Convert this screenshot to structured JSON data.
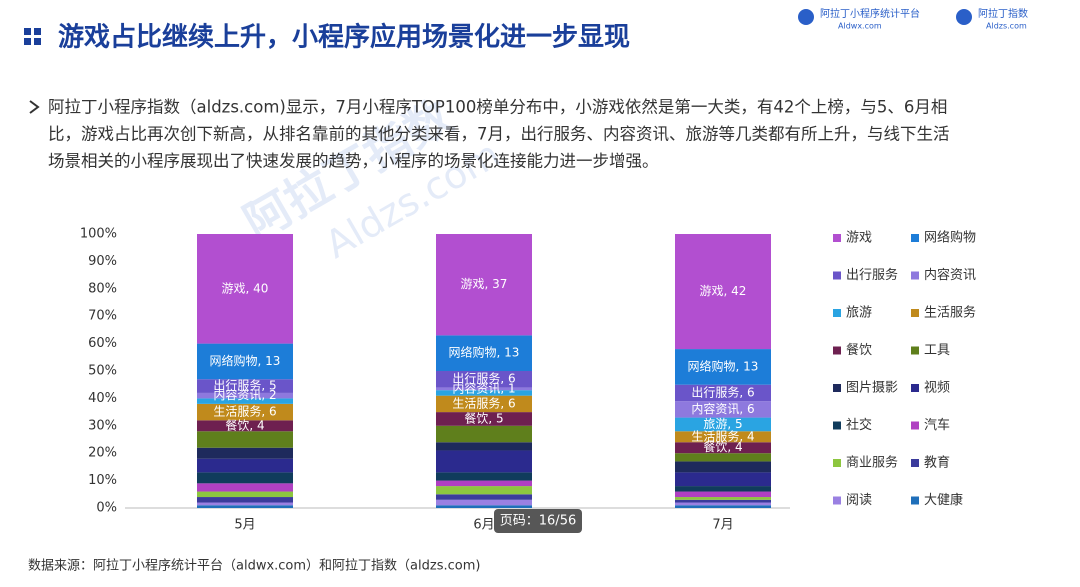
{
  "header": {
    "title": "游戏占比继续上升，小程序应用场景化进一步显现",
    "logos": [
      {
        "name": "阿拉丁小程序统计平台",
        "site": "Aldwx.com"
      },
      {
        "name": "阿拉丁指数",
        "site": "Aldzs.com"
      }
    ]
  },
  "bullet": {
    "lines": [
      "阿拉丁小程序指数（aldzs.com)显示，7月小程序TOP100榜单分布中，小游戏依然是第一大类，有42个上榜，与5、6月相",
      "比，游戏占比再次创下新高，从排名靠前的其他分类来看，7月，出行服务、内容资讯、旅游等几类都有所上升，与线下生活",
      "场景相关的小程序展现出了快速发展的趋势，小程序的场景化连接能力进一步增强。"
    ]
  },
  "watermark": {
    "name": "阿拉丁指数",
    "site": "Aldzs.com"
  },
  "chart_data": {
    "type": "stacked_bar",
    "categories": [
      "5月",
      "6月",
      "7月"
    ],
    "ylim": [
      0,
      100
    ],
    "yticks": [
      {
        "value": 0,
        "label": "0%"
      },
      {
        "value": 10,
        "label": "10%"
      },
      {
        "value": 20,
        "label": "20%"
      },
      {
        "value": 30,
        "label": "30%"
      },
      {
        "value": 40,
        "label": "40%"
      },
      {
        "value": 50,
        "label": "50%"
      },
      {
        "value": 60,
        "label": "60%"
      },
      {
        "value": 70,
        "label": "70%"
      },
      {
        "value": 80,
        "label": "80%"
      },
      {
        "value": 90,
        "label": "90%"
      },
      {
        "value": 100,
        "label": "100%"
      }
    ],
    "legend": "right",
    "series": [
      {
        "name": "游戏",
        "color": "#b24fd0",
        "values": [
          40,
          37,
          42
        ],
        "value_labels": [
          "游戏, 40",
          "游戏, 37",
          "游戏, 42"
        ]
      },
      {
        "name": "网络购物",
        "color": "#1d7dd8",
        "values": [
          13,
          13,
          13
        ],
        "value_labels": [
          "网络购物, 13",
          "网络购物, 13",
          "网络购物, 13"
        ]
      },
      {
        "name": "出行服务",
        "color": "#6a55c9",
        "values": [
          5,
          6,
          6
        ],
        "value_labels": [
          "出行服务, 5",
          "出行服务, 6",
          "出行服务, 6"
        ]
      },
      {
        "name": "内容资讯",
        "color": "#8e79de",
        "values": [
          2,
          1,
          6
        ],
        "value_labels": [
          "内容资讯, 2",
          "内容资讯, 1",
          "内容资讯, 6"
        ]
      },
      {
        "name": "旅游",
        "color": "#2aa4e2",
        "values": [
          2,
          2,
          5
        ],
        "value_labels": [
          null,
          null,
          "旅游, 5"
        ]
      },
      {
        "name": "生活服务",
        "color": "#c08a1c",
        "values": [
          6,
          6,
          4
        ],
        "value_labels": [
          "生活服务, 6",
          "生活服务, 6",
          "生活服务, 4"
        ]
      },
      {
        "name": "餐饮",
        "color": "#6e2050",
        "values": [
          4,
          5,
          4
        ],
        "value_labels": [
          "餐饮, 4",
          "餐饮, 5",
          "餐饮, 4"
        ]
      },
      {
        "name": "工具",
        "color": "#5f7f1c",
        "values": [
          6,
          6,
          3
        ],
        "value_labels": [
          null,
          null,
          null
        ]
      },
      {
        "name": "图片摄影",
        "color": "#1e2a5c",
        "values": [
          4,
          3,
          4
        ],
        "value_labels": [
          null,
          null,
          null
        ]
      },
      {
        "name": "视频",
        "color": "#2b2a8e",
        "values": [
          5,
          8,
          5
        ],
        "value_labels": [
          null,
          null,
          null
        ]
      },
      {
        "name": "社交",
        "color": "#103c5c",
        "values": [
          4,
          3,
          2
        ],
        "value_labels": [
          null,
          null,
          null
        ]
      },
      {
        "name": "汽车",
        "color": "#b040c2",
        "values": [
          3,
          2,
          2
        ],
        "value_labels": [
          null,
          null,
          null
        ]
      },
      {
        "name": "商业服务",
        "color": "#8dc63f",
        "values": [
          2,
          3,
          1
        ],
        "value_labels": [
          null,
          null,
          null
        ]
      },
      {
        "name": "教育",
        "color": "#3b3b9c",
        "values": [
          2,
          2,
          1
        ],
        "value_labels": [
          null,
          null,
          null
        ]
      },
      {
        "name": "阅读",
        "color": "#9a80e2",
        "values": [
          1,
          2,
          1
        ],
        "value_labels": [
          null,
          null,
          null
        ]
      },
      {
        "name": "大健康",
        "color": "#1f6fba",
        "values": [
          1,
          1,
          1
        ],
        "value_labels": [
          null,
          null,
          null
        ]
      }
    ]
  },
  "footer": {
    "source": "数据来源：阿拉丁小程序统计平台（aldwx.com）和阿拉丁指数（aldzs.com)",
    "page": "页码：16/56"
  }
}
